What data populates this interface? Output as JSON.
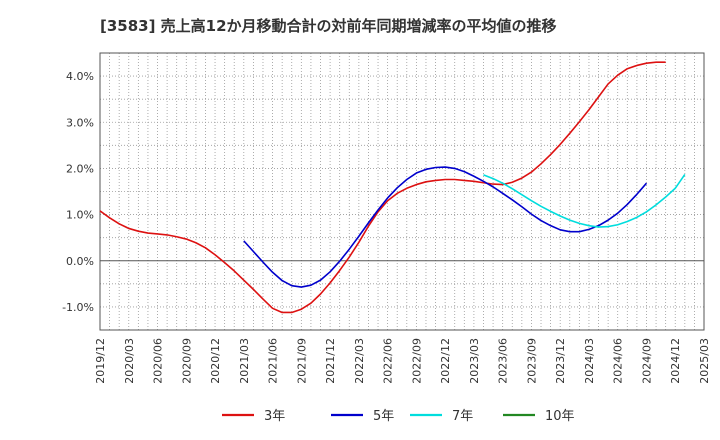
{
  "chart_data": {
    "type": "line",
    "title": "[3583]  売上高12か月移動合計の対前年同期増減率の平均値の推移",
    "xlabel": "",
    "ylabel": "",
    "ylim": [
      -1.5,
      4.5
    ],
    "yticks": [
      "-1.0%",
      "0.0%",
      "1.0%",
      "2.0%",
      "3.0%",
      "4.0%"
    ],
    "ytick_values": [
      -1,
      0,
      1,
      2,
      3,
      4
    ],
    "xticks": [
      "2019/12",
      "2020/03",
      "2020/06",
      "2020/09",
      "2020/12",
      "2021/03",
      "2021/06",
      "2021/09",
      "2021/12",
      "2022/03",
      "2022/06",
      "2022/09",
      "2022/12",
      "2023/03",
      "2023/06",
      "2023/09",
      "2023/12",
      "2024/03",
      "2024/06",
      "2024/09",
      "2024/12",
      "2025/03"
    ],
    "grid": true,
    "legend_position": "bottom",
    "series": [
      {
        "name": "3年",
        "color": "#dd1111",
        "start": 0,
        "values": [
          1.08,
          0.93,
          0.8,
          0.7,
          0.64,
          0.6,
          0.58,
          0.56,
          0.52,
          0.47,
          0.39,
          0.28,
          0.13,
          -0.04,
          -0.22,
          -0.42,
          -0.62,
          -0.83,
          -1.03,
          -1.12,
          -1.12,
          -1.05,
          -0.92,
          -0.72,
          -0.48,
          -0.21,
          0.08,
          0.4,
          0.75,
          1.06,
          1.3,
          1.46,
          1.57,
          1.65,
          1.71,
          1.74,
          1.76,
          1.76,
          1.74,
          1.72,
          1.69,
          1.66,
          1.65,
          1.7,
          1.79,
          1.92,
          2.1,
          2.3,
          2.52,
          2.76,
          3.01,
          3.27,
          3.55,
          3.83,
          4.02,
          4.16,
          4.23,
          4.28,
          4.3,
          4.3
        ]
      },
      {
        "name": "5年",
        "color": "#0000cc",
        "start": 15,
        "values": [
          0.43,
          0.2,
          -0.03,
          -0.25,
          -0.43,
          -0.54,
          -0.57,
          -0.53,
          -0.42,
          -0.24,
          -0.01,
          0.25,
          0.53,
          0.82,
          1.1,
          1.36,
          1.58,
          1.76,
          1.9,
          1.98,
          2.02,
          2.03,
          2.0,
          1.93,
          1.83,
          1.72,
          1.6,
          1.46,
          1.32,
          1.17,
          1.01,
          0.87,
          0.76,
          0.67,
          0.63,
          0.63,
          0.68,
          0.76,
          0.88,
          1.03,
          1.22,
          1.44,
          1.68
        ]
      },
      {
        "name": "7年",
        "color": "#00dddd",
        "start": 40,
        "values": [
          1.86,
          1.78,
          1.68,
          1.56,
          1.43,
          1.3,
          1.18,
          1.07,
          0.97,
          0.88,
          0.81,
          0.76,
          0.73,
          0.74,
          0.78,
          0.85,
          0.94,
          1.06,
          1.21,
          1.38,
          1.57,
          1.87
        ]
      },
      {
        "name": "10年",
        "color": "#228822",
        "start": 0,
        "values": []
      }
    ]
  }
}
